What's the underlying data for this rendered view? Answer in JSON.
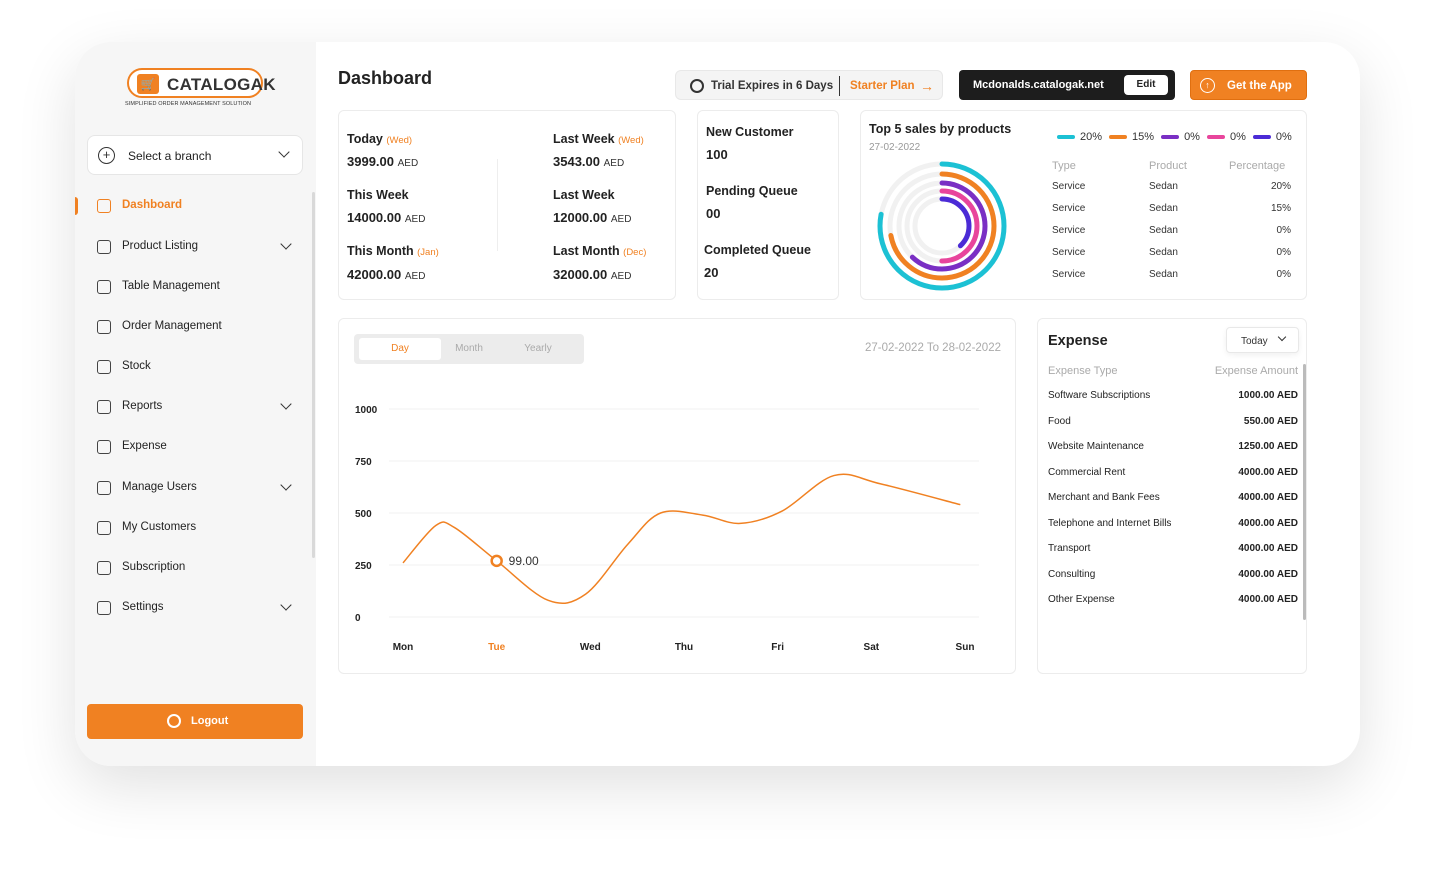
{
  "brand": {
    "name": "CATALOGAK",
    "tagline": "SIMPLIFIED ORDER MANAGEMENT SOLUTION",
    "accent": "#f08122"
  },
  "sidebar": {
    "branch_label": "Select a branch",
    "items": [
      {
        "label": "Dashboard",
        "icon": "grid-icon",
        "active": true
      },
      {
        "label": "Product Listing",
        "icon": "list-icon",
        "expandable": true
      },
      {
        "label": "Table Management",
        "icon": "table-icon"
      },
      {
        "label": "Order Management",
        "icon": "order-icon"
      },
      {
        "label": "Stock",
        "icon": "stock-icon"
      },
      {
        "label": "Reports",
        "icon": "report-icon",
        "expandable": true
      },
      {
        "label": "Expense",
        "icon": "expense-icon"
      },
      {
        "label": "Manage Users",
        "icon": "users-icon",
        "expandable": true
      },
      {
        "label": "My Customers",
        "icon": "customers-icon"
      },
      {
        "label": "Subscription",
        "icon": "subscription-icon"
      },
      {
        "label": "Settings",
        "icon": "gear-icon",
        "expandable": true
      }
    ],
    "logout_label": "Logout"
  },
  "header": {
    "title": "Dashboard",
    "trial_text": "Trial Expires in 6 Days",
    "plan_text": "Starter Plan",
    "domain": "Mcdonalds.catalogak.net",
    "edit_label": "Edit",
    "get_app_label": "Get the App"
  },
  "sales": {
    "today_label": "Today",
    "today_sub": "(Wed)",
    "today_value": "3999.00",
    "today_unit": "AED",
    "lastweek1_label": "Last Week",
    "lastweek1_sub": "(Wed)",
    "lastweek1_value": "3543.00",
    "lastweek1_unit": "AED",
    "thisweek_label": "This Week",
    "thisweek_value": "14000.00",
    "thisweek_unit": "AED",
    "lastweek2_label": "Last Week",
    "lastweek2_value": "12000.00",
    "lastweek2_unit": "AED",
    "thismonth_label": "This Month",
    "thismonth_sub": "(Jan)",
    "thismonth_value": "42000.00",
    "thismonth_unit": "AED",
    "lastmonth_label": "Last Month",
    "lastmonth_sub": "(Dec)",
    "lastmonth_value": "32000.00",
    "lastmonth_unit": "AED"
  },
  "queue": {
    "new_customer_label": "New Customer",
    "new_customer_value": "100",
    "pending_label": "Pending Queue",
    "pending_value": "00",
    "completed_label": "Completed Queue",
    "completed_value": "20"
  },
  "top5": {
    "title": "Top 5 sales by products",
    "date": "27-02-2022",
    "legend": [
      {
        "label": "20%",
        "color": "#1cc1d4"
      },
      {
        "label": "15%",
        "color": "#f08122"
      },
      {
        "label": "0%",
        "color": "#7a2fc4"
      },
      {
        "label": "0%",
        "color": "#e8459c"
      },
      {
        "label": "0%",
        "color": "#4b2bd6"
      }
    ],
    "headers": {
      "type": "Type",
      "product": "Product",
      "percentage": "Percentage"
    },
    "rows": [
      {
        "type": "Service",
        "product": "Sedan",
        "percentage": "20%"
      },
      {
        "type": "Service",
        "product": "Sedan",
        "percentage": "15%"
      },
      {
        "type": "Service",
        "product": "Sedan",
        "percentage": "0%"
      },
      {
        "type": "Service",
        "product": "Sedan",
        "percentage": "0%"
      },
      {
        "type": "Service",
        "product": "Sedan",
        "percentage": "0%"
      }
    ],
    "rings": [
      {
        "fraction": 0.78,
        "color": "#1cc1d4"
      },
      {
        "fraction": 0.72,
        "color": "#f08122"
      },
      {
        "fraction": 0.62,
        "color": "#7a2fc4"
      },
      {
        "fraction": 0.5,
        "color": "#e8459c"
      },
      {
        "fraction": 0.38,
        "color": "#4b2bd6"
      }
    ]
  },
  "chart_tabs": {
    "day": "Day",
    "month": "Month",
    "yearly": "Yearly"
  },
  "chart_range": "27-02-2022 To 28-02-2022",
  "chart_data": {
    "type": "line",
    "categories": [
      "Mon",
      "Tue",
      "Wed",
      "Thu",
      "Fri",
      "Sat",
      "Sun"
    ],
    "highlight_category": "Tue",
    "highlight_label": "99.00",
    "ylim": [
      0,
      1000
    ],
    "yticks": [
      0,
      250,
      500,
      750,
      1000
    ],
    "series": [
      {
        "color": "#f08122",
        "points": [
          [
            0,
            260
          ],
          [
            0.35,
            440
          ],
          [
            0.55,
            430
          ],
          [
            1,
            270
          ],
          [
            1.55,
            80
          ],
          [
            1.95,
            110
          ],
          [
            2.4,
            350
          ],
          [
            2.75,
            500
          ],
          [
            3.2,
            490
          ],
          [
            3.6,
            450
          ],
          [
            4.05,
            510
          ],
          [
            4.6,
            680
          ],
          [
            5.1,
            640
          ],
          [
            5.95,
            540
          ]
        ]
      }
    ],
    "grid": true,
    "line_color": "#f08122"
  },
  "expense": {
    "title": "Expense",
    "filter": "Today",
    "head_type": "Expense Type",
    "head_amount": "Expense Amount",
    "rows": [
      {
        "type": "Software Subscriptions",
        "amount": "1000.00 AED"
      },
      {
        "type": "Food",
        "amount": "550.00 AED"
      },
      {
        "type": "Website Maintenance",
        "amount": "1250.00 AED"
      },
      {
        "type": "Commercial Rent",
        "amount": "4000.00 AED"
      },
      {
        "type": "Merchant and Bank Fees",
        "amount": "4000.00 AED"
      },
      {
        "type": "Telephone and Internet Bills",
        "amount": "4000.00 AED"
      },
      {
        "type": "Transport",
        "amount": "4000.00 AED"
      },
      {
        "type": "Consulting",
        "amount": "4000.00 AED"
      },
      {
        "type": "Other Expense",
        "amount": "4000.00 AED"
      }
    ]
  }
}
